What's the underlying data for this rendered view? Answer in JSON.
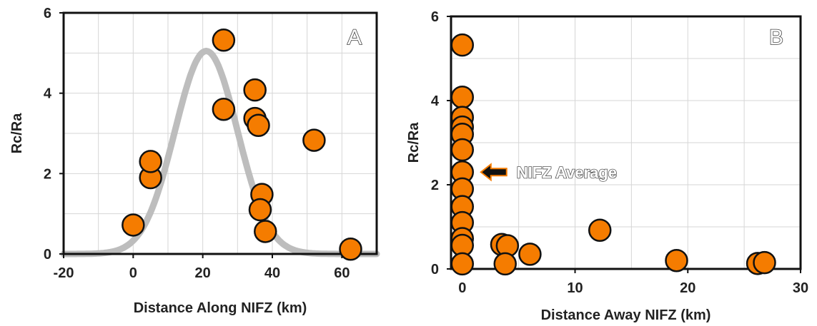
{
  "chart_data": [
    {
      "type": "scatter",
      "panel_label": "A",
      "xlabel": "Distance Along NIFZ (km)",
      "ylabel": "Rc/Ra",
      "xlim": [
        -20,
        70
      ],
      "ylim": [
        0,
        6
      ],
      "xticks": [
        "-20",
        "0",
        "20",
        "40",
        "60"
      ],
      "yticks": [
        "0",
        "2",
        "4",
        "6"
      ],
      "grid": true,
      "points": [
        {
          "x": 0,
          "y": 0.72
        },
        {
          "x": 5,
          "y": 1.9
        },
        {
          "x": 5,
          "y": 2.3
        },
        {
          "x": 26,
          "y": 5.32
        },
        {
          "x": 26,
          "y": 3.6
        },
        {
          "x": 35,
          "y": 4.08
        },
        {
          "x": 35,
          "y": 3.37
        },
        {
          "x": 36,
          "y": 3.2
        },
        {
          "x": 37,
          "y": 1.48
        },
        {
          "x": 36.5,
          "y": 1.1
        },
        {
          "x": 38,
          "y": 0.56
        },
        {
          "x": 52,
          "y": 2.83
        },
        {
          "x": 62.5,
          "y": 0.12
        }
      ],
      "curve": {
        "type": "gaussian",
        "mean": 21,
        "sd": 9,
        "peak": 5.05
      }
    },
    {
      "type": "scatter",
      "panel_label": "B",
      "xlabel": "Distance Away NIFZ (km)",
      "ylabel": "Rc/Ra",
      "xlim": [
        -1,
        30
      ],
      "ylim": [
        0,
        6
      ],
      "xticks": [
        "0",
        "10",
        "20",
        "30"
      ],
      "yticks": [
        "0",
        "2",
        "4",
        "6"
      ],
      "grid": true,
      "points": [
        {
          "x": 0,
          "y": 5.32
        },
        {
          "x": 0,
          "y": 4.08
        },
        {
          "x": 0,
          "y": 3.6
        },
        {
          "x": 0,
          "y": 3.37
        },
        {
          "x": 0,
          "y": 3.2
        },
        {
          "x": 0,
          "y": 2.83
        },
        {
          "x": 0,
          "y": 2.3
        },
        {
          "x": 0,
          "y": 1.9
        },
        {
          "x": 0,
          "y": 1.48
        },
        {
          "x": 0,
          "y": 1.1
        },
        {
          "x": 0,
          "y": 0.72
        },
        {
          "x": 0,
          "y": 0.56
        },
        {
          "x": 0,
          "y": 0.12
        },
        {
          "x": 3.5,
          "y": 0.58
        },
        {
          "x": 4,
          "y": 0.55
        },
        {
          "x": 3.8,
          "y": 0.12
        },
        {
          "x": 6,
          "y": 0.35
        },
        {
          "x": 12.2,
          "y": 0.92
        },
        {
          "x": 19,
          "y": 0.2
        },
        {
          "x": 26.2,
          "y": 0.13
        },
        {
          "x": 26.8,
          "y": 0.15
        }
      ],
      "annotation": {
        "text": "NIFZ Average",
        "y": 2.3
      }
    }
  ]
}
